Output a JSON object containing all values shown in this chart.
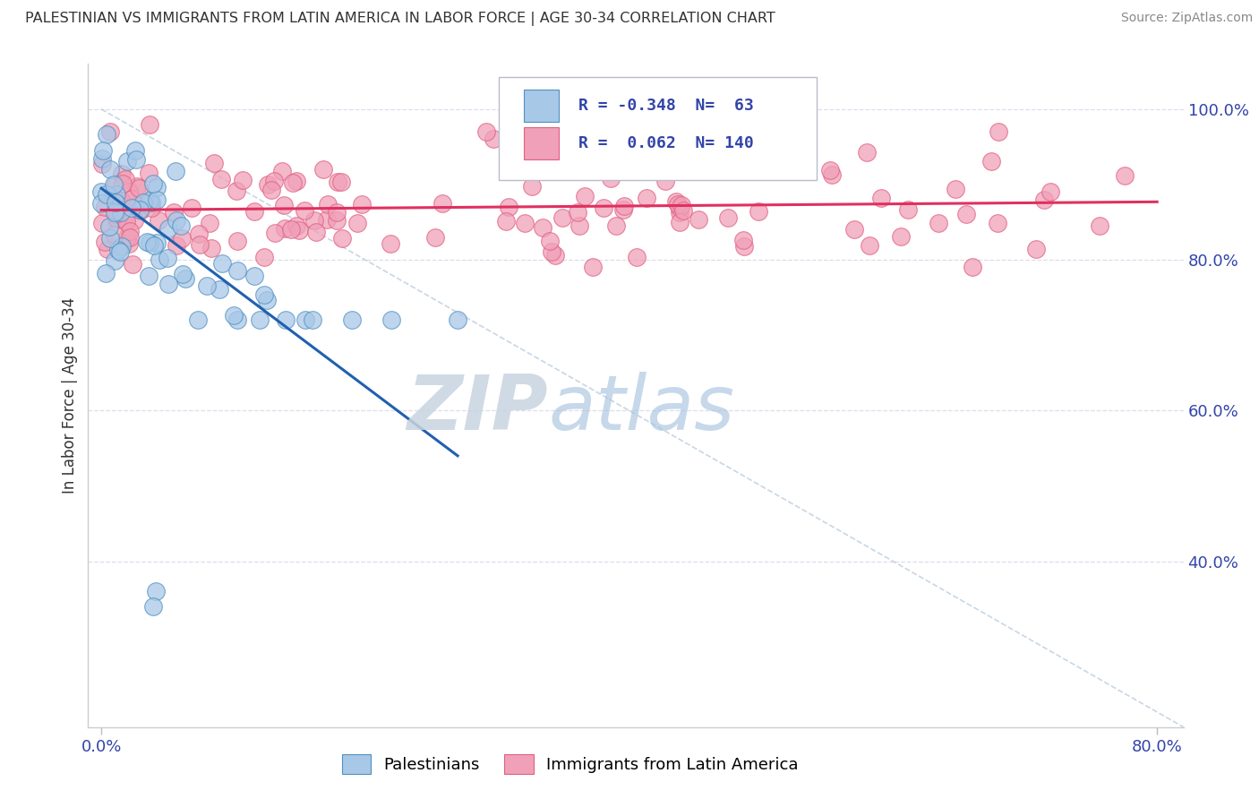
{
  "title": "PALESTINIAN VS IMMIGRANTS FROM LATIN AMERICA IN LABOR FORCE | AGE 30-34 CORRELATION CHART",
  "source": "Source: ZipAtlas.com",
  "ylabel": "In Labor Force | Age 30-34",
  "background_color": "#ffffff",
  "legend_R_blue": "-0.348",
  "legend_N_blue": "63",
  "legend_R_pink": "0.062",
  "legend_N_pink": "140",
  "blue_color": "#a8c8e8",
  "blue_edge_color": "#5090c0",
  "pink_color": "#f0a0b8",
  "pink_edge_color": "#e06080",
  "blue_line_color": "#2060b0",
  "pink_line_color": "#e03060",
  "diag_color": "#bbccdd",
  "grid_color": "#ddddee",
  "text_color": "#3344aa",
  "title_color": "#333333",
  "source_color": "#888888",
  "watermark_color": "#dde8f0",
  "xlim": [
    -0.01,
    0.82
  ],
  "ylim": [
    0.18,
    1.06
  ],
  "xpct_ticks": [
    0.0,
    0.8
  ],
  "xpct_labels": [
    "0.0%",
    "80.0%"
  ],
  "ypct_ticks": [
    0.4,
    0.6,
    0.8,
    1.0
  ],
  "ypct_labels": [
    "40.0%",
    "60.0%",
    "80.0%",
    "100.0%"
  ]
}
